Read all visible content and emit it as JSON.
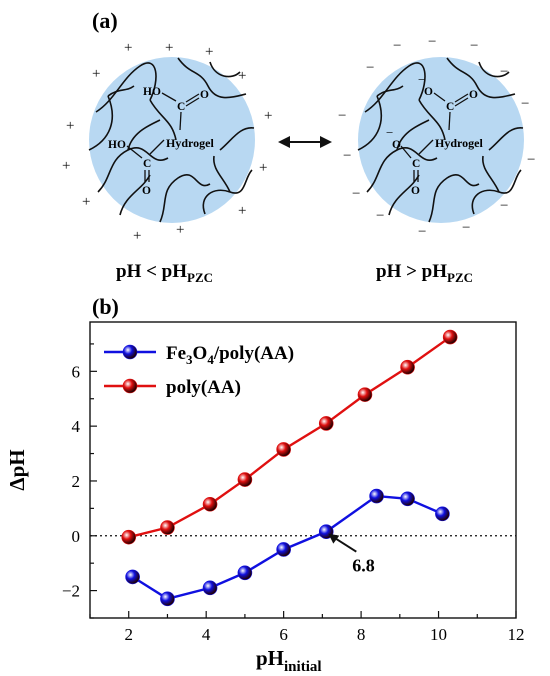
{
  "panel_a": {
    "label": "(a)",
    "acid_left": {
      "top_group": "HO",
      "bottom_group": "HO",
      "carbon": "C",
      "oxygen": "O",
      "center": "Hydrogel"
    },
    "acid_right": {
      "top_group": "O",
      "bottom_group": "O",
      "carbon": "C",
      "oxygen": "O",
      "center": "Hydrogel",
      "charge": "−"
    },
    "left_caption": {
      "main": "pH < pH",
      "sub": "PZC"
    },
    "right_caption": {
      "main": "pH > pH",
      "sub": "PZC"
    },
    "plus_sign": "+",
    "minus_sign": "−",
    "colors": {
      "particle": "#b8d8f2",
      "network": "#111111"
    }
  },
  "panel_b": {
    "label": "(b)"
  },
  "chart_data": {
    "type": "line",
    "xlabel": {
      "main": "pH",
      "sub": "initial"
    },
    "ylabel": "ΔpH",
    "xlim": [
      1,
      12
    ],
    "ylim": [
      -3,
      7.8
    ],
    "xticks": [
      2,
      4,
      6,
      8,
      10,
      12
    ],
    "yticks": [
      -2,
      0,
      2,
      4,
      6
    ],
    "ytick_labels": [
      "−2",
      "0",
      "2",
      "4",
      "6"
    ],
    "legend": {
      "placement": "top-left"
    },
    "reference_line": {
      "y": 0,
      "style": "dotted"
    },
    "annotation": {
      "text": "6.8",
      "x": 7.05,
      "y": 0.15
    },
    "series": [
      {
        "name_parts": [
          "Fe",
          "3",
          "O",
          "4",
          "/poly(AA)"
        ],
        "color": "#1010e0",
        "points": [
          [
            2.1,
            -1.5
          ],
          [
            3.0,
            -2.3
          ],
          [
            4.1,
            -1.9
          ],
          [
            5.0,
            -1.35
          ],
          [
            6.0,
            -0.5
          ],
          [
            7.1,
            0.15
          ],
          [
            8.4,
            1.45
          ],
          [
            9.2,
            1.35
          ],
          [
            10.1,
            0.8
          ]
        ]
      },
      {
        "name": "poly(AA)",
        "color": "#e01010",
        "points": [
          [
            2.0,
            -0.05
          ],
          [
            3.0,
            0.3
          ],
          [
            4.1,
            1.15
          ],
          [
            5.0,
            2.05
          ],
          [
            6.0,
            3.15
          ],
          [
            7.1,
            4.1
          ],
          [
            8.1,
            5.15
          ],
          [
            9.2,
            6.15
          ],
          [
            10.3,
            7.25
          ]
        ]
      }
    ]
  }
}
